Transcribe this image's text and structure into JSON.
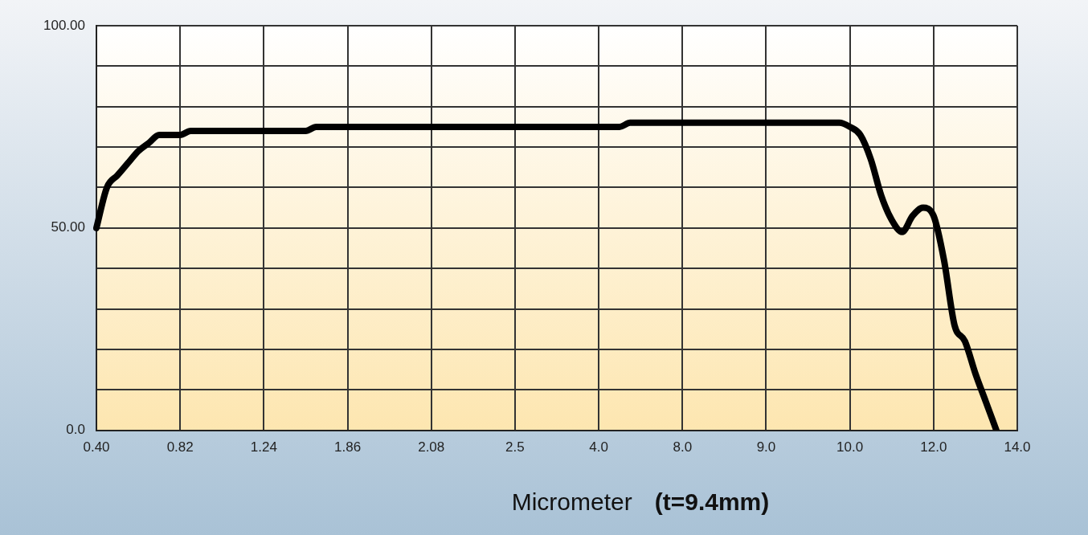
{
  "chart_data": {
    "type": "line",
    "xlabel": "Micrometer",
    "annotations": [
      "(t=9.4mm)"
    ],
    "categories": [
      "0.40",
      null,
      null,
      null,
      null,
      null,
      null,
      null,
      "0.82",
      null,
      null,
      null,
      null,
      null,
      null,
      null,
      "1.24",
      null,
      null,
      null,
      null,
      null,
      null,
      null,
      "1.86",
      null,
      null,
      null,
      null,
      null,
      null,
      null,
      "2.08",
      null,
      null,
      null,
      null,
      null,
      null,
      null,
      "2.5",
      null,
      null,
      null,
      null,
      null,
      null,
      null,
      "4.0",
      null,
      null,
      null,
      null,
      null,
      null,
      null,
      "8.0",
      null,
      null,
      null,
      null,
      null,
      null,
      null,
      "9.0",
      null,
      null,
      null,
      null,
      null,
      null,
      null,
      "10.0",
      null,
      null,
      null,
      null,
      null,
      null,
      null,
      "12.0",
      null,
      null,
      null,
      null,
      null,
      null,
      null,
      "14.0"
    ],
    "series": [
      {
        "color": "#000000",
        "values": [
          50,
          60,
          63,
          66,
          69,
          71,
          73,
          73,
          73,
          74,
          74,
          74,
          74,
          74,
          74,
          74,
          74,
          74,
          74,
          74,
          74,
          75,
          75,
          75,
          75,
          75,
          75,
          75,
          75,
          75,
          75,
          75,
          75,
          75,
          75,
          75,
          75,
          75,
          75,
          75,
          75,
          75,
          75,
          75,
          75,
          75,
          75,
          75,
          75,
          75,
          75,
          76,
          76,
          76,
          76,
          76,
          76,
          76,
          76,
          76,
          76,
          76,
          76,
          76,
          76,
          76,
          76,
          76,
          76,
          76,
          76,
          76,
          75,
          73,
          67,
          58,
          52,
          49,
          53,
          55,
          53,
          42,
          26,
          22,
          14,
          7,
          0,
          null,
          null
        ]
      }
    ],
    "ylim": [
      0,
      100
    ],
    "yticks": [
      {
        "value": 0,
        "label": "0.0"
      },
      {
        "value": 10,
        "label": null
      },
      {
        "value": 20,
        "label": null
      },
      {
        "value": 30,
        "label": null
      },
      {
        "value": 40,
        "label": null
      },
      {
        "value": 50,
        "label": "50.00"
      },
      {
        "value": 60,
        "label": null
      },
      {
        "value": 70,
        "label": null
      },
      {
        "value": 80,
        "label": null
      },
      {
        "value": 90,
        "label": null
      },
      {
        "value": 100,
        "label": "100.00"
      }
    ],
    "grid": true,
    "legend": false,
    "marker": "none",
    "line_style": "solid"
  }
}
